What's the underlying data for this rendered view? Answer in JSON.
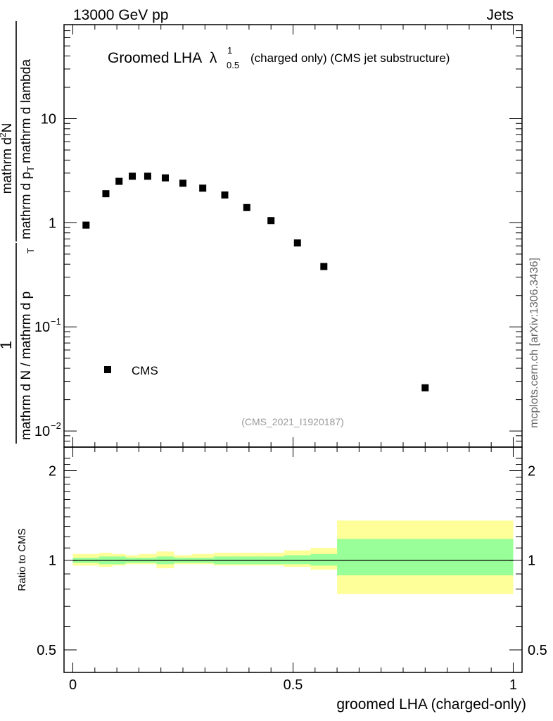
{
  "header": {
    "left": "13000 GeV pp",
    "right": "Jets"
  },
  "side_label": "mcplots.cern.ch [arXiv:1306.3436]",
  "chart_data": [
    {
      "type": "scatter",
      "title_main": "Groomed LHA",
      "title_lambda": "λ",
      "title_sup": "1",
      "title_sub": "0.5",
      "title_rest": "(charged only) (CMS jet substructure)",
      "watermark": "(CMS_2021_I1920187)",
      "ylabel_numerator": "1",
      "ylabel_denominator": "mathrm d N / mathrm d p",
      "ylabel_denominator_sub": "T",
      "ylabel_numerator2": "mathrm d",
      "ylabel_numerator2_sup": "2",
      "ylabel_numerator2_tail": "N",
      "ylabel_denominator2": "mathrm d p",
      "ylabel_denominator2_sub": "T",
      "ylabel_denominator2_tail": "mathrm d lambda",
      "yscale": "log",
      "xlim": [
        -0.02,
        1.02
      ],
      "ylim": [
        0.007,
        80
      ],
      "yticks": [
        {
          "value": 10,
          "label": "10"
        },
        {
          "value": 1,
          "label": "1"
        },
        {
          "value": 0.1,
          "label": "10",
          "exp": "−1"
        },
        {
          "value": 0.01,
          "label": "10",
          "exp": "−2"
        }
      ],
      "legend": {
        "position": "bottom-left",
        "entries": [
          "CMS"
        ]
      },
      "series": [
        {
          "name": "CMS",
          "x": [
            0.03,
            0.075,
            0.105,
            0.135,
            0.17,
            0.21,
            0.25,
            0.295,
            0.345,
            0.395,
            0.45,
            0.51,
            0.57,
            0.8
          ],
          "y": [
            0.95,
            1.9,
            2.5,
            2.8,
            2.8,
            2.7,
            2.4,
            2.15,
            1.85,
            1.4,
            1.05,
            0.64,
            0.38,
            0.026
          ]
        }
      ]
    },
    {
      "type": "area",
      "ylabel": "Ratio to CMS",
      "xlabel": "groomed LHA (charged-only)",
      "yscale": "log",
      "xlim": [
        -0.02,
        1.02
      ],
      "ylim": [
        0.42,
        2.4
      ],
      "xticks": [
        {
          "value": 0,
          "label": "0"
        },
        {
          "value": 0.5,
          "label": "0.5"
        },
        {
          "value": 1,
          "label": "1"
        }
      ],
      "yticks": [
        {
          "value": 2,
          "label": "2"
        },
        {
          "value": 1,
          "label": "1"
        },
        {
          "value": 0.5,
          "label": "0.5"
        }
      ],
      "bins": [
        0,
        0.06,
        0.09,
        0.12,
        0.15,
        0.19,
        0.23,
        0.27,
        0.32,
        0.37,
        0.42,
        0.48,
        0.54,
        0.6,
        1.0
      ],
      "inner_band_lo": [
        0.98,
        0.97,
        0.97,
        0.98,
        0.98,
        0.97,
        0.98,
        0.98,
        0.97,
        0.97,
        0.97,
        0.97,
        0.96,
        0.89
      ],
      "inner_band_hi": [
        1.02,
        1.03,
        1.03,
        1.02,
        1.02,
        1.03,
        1.02,
        1.02,
        1.03,
        1.03,
        1.03,
        1.04,
        1.05,
        1.18
      ],
      "outer_band_lo": [
        0.96,
        0.95,
        0.96,
        0.97,
        0.97,
        0.94,
        0.97,
        0.97,
        0.96,
        0.96,
        0.96,
        0.95,
        0.93,
        0.77
      ],
      "outer_band_hi": [
        1.05,
        1.06,
        1.05,
        1.04,
        1.05,
        1.07,
        1.04,
        1.05,
        1.06,
        1.06,
        1.06,
        1.08,
        1.1,
        1.36
      ],
      "reference_line": 1
    }
  ],
  "colors": {
    "inner_band": "#99ff99",
    "outer_band": "#ffff99",
    "marker": "#000000",
    "watermark": "#999999",
    "side_label": "#666666"
  }
}
